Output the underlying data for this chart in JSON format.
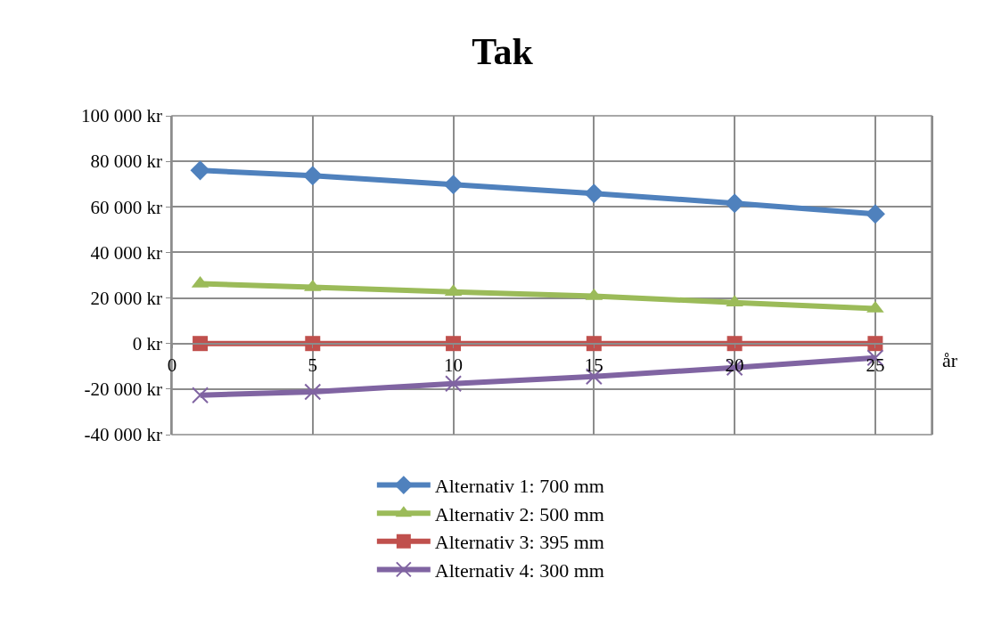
{
  "chart_data": {
    "type": "line",
    "title": "Tak",
    "xlabel": "år",
    "x": [
      1,
      5,
      10,
      15,
      20,
      25
    ],
    "xlim": [
      0,
      27
    ],
    "xticks": [
      0,
      5,
      10,
      15,
      20,
      25
    ],
    "ylim": [
      -40000,
      100000
    ],
    "yticks": [
      {
        "value": -40000,
        "label": "-40 000 kr"
      },
      {
        "value": -20000,
        "label": "-20 000 kr"
      },
      {
        "value": 0,
        "label": "0 kr"
      },
      {
        "value": 20000,
        "label": "20 000 kr"
      },
      {
        "value": 40000,
        "label": "40 000 kr"
      },
      {
        "value": 60000,
        "label": "60 000 kr"
      },
      {
        "value": 80000,
        "label": "80 000 kr"
      },
      {
        "value": 100000,
        "label": "100 000 kr"
      }
    ],
    "grid": true,
    "legend": "bottom",
    "line_style": "solid",
    "series": [
      {
        "name": "Alternativ 1: 700 mm",
        "color": "#4f81bd",
        "marker": "diamond",
        "values": [
          76000,
          73700,
          69800,
          65900,
          61600,
          56900
        ]
      },
      {
        "name": "Alternativ 2: 500 mm",
        "color": "#9bbb59",
        "marker": "triangle",
        "values": [
          26300,
          24700,
          22700,
          20800,
          18000,
          15300
        ]
      },
      {
        "name": "Alternativ 3: 395 mm",
        "color": "#c0504d",
        "marker": "square",
        "values": [
          0,
          0,
          0,
          0,
          0,
          0
        ]
      },
      {
        "name": "Alternativ 4: 300 mm",
        "color": "#8064a2",
        "marker": "cross",
        "values": [
          -22700,
          -21200,
          -17600,
          -14500,
          -10600,
          -6300
        ]
      }
    ]
  }
}
